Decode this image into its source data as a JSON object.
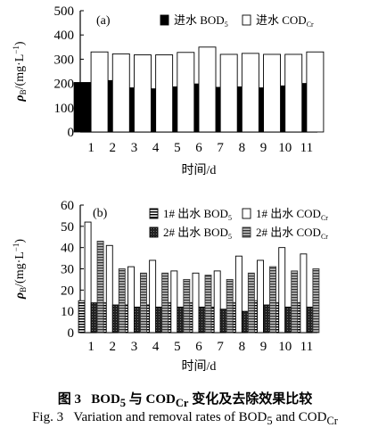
{
  "chart_data": [
    {
      "type": "bar",
      "panel_label": "(a)",
      "title": "",
      "xlabel": "时间/d",
      "ylabel": "ρB/(mg·L⁻¹)",
      "ylabel_parts": {
        "rho": "ρ",
        "sub": "B",
        "rest": "/(mg·L",
        "sup": "−1",
        "close": ")"
      },
      "ylim": [
        0,
        500
      ],
      "yticks": [
        "0",
        "100",
        "200",
        "300",
        "400",
        "500"
      ],
      "categories": [
        "1",
        "2",
        "3",
        "4",
        "5",
        "6",
        "7",
        "8",
        "9",
        "10",
        "11"
      ],
      "grid": false,
      "legend_position": "top-right",
      "series": [
        {
          "name": "进水 BOD5",
          "legend_parts": {
            "main": "进水 BOD",
            "sub": "5"
          },
          "color": "#000000",
          "pattern": "solid-black",
          "values": [
            204,
            212,
            182,
            178,
            186,
            198,
            184,
            186,
            182,
            190,
            200
          ]
        },
        {
          "name": "进水 CODCr",
          "legend_parts": {
            "main": "进水 COD",
            "sub": "Cr"
          },
          "color": "#ffffff",
          "pattern": "white-outline",
          "values": [
            330,
            322,
            318,
            318,
            328,
            350,
            320,
            324,
            320,
            320,
            330
          ]
        }
      ]
    },
    {
      "type": "bar",
      "panel_label": "(b)",
      "title": "",
      "xlabel": "时间/d",
      "ylabel": "ρB/(mg·L⁻¹)",
      "ylabel_parts": {
        "rho": "ρ",
        "sub": "B",
        "rest": "/(mg·L",
        "sup": "−1",
        "close": ")"
      },
      "ylim": [
        0,
        60
      ],
      "yticks": [
        "0",
        "10",
        "20",
        "30",
        "40",
        "50",
        "60"
      ],
      "categories": [
        "1",
        "2",
        "3",
        "4",
        "5",
        "6",
        "7",
        "8",
        "9",
        "10",
        "11"
      ],
      "grid": false,
      "legend_position": "top-right",
      "series": [
        {
          "name": "1# 出水 BOD5",
          "legend_parts": {
            "main": "1# 出水 BOD",
            "sub": "5"
          },
          "pattern": "black-white-stripes",
          "values": [
            15,
            14,
            13,
            13,
            14,
            14,
            12,
            14,
            15,
            14,
            14
          ]
        },
        {
          "name": "1# 出水 CODCr",
          "legend_parts": {
            "main": "1# 出水 COD",
            "sub": "Cr"
          },
          "pattern": "white-outline",
          "values": [
            52,
            41,
            31,
            34,
            29,
            28,
            29,
            36,
            34,
            40,
            37
          ]
        },
        {
          "name": "2# 出水 BOD5",
          "legend_parts": {
            "main": "2# 出水 BOD",
            "sub": "5"
          },
          "pattern": "dark-dotted",
          "values": [
            14,
            13,
            12,
            12,
            12,
            12,
            11,
            10,
            13,
            12,
            12
          ]
        },
        {
          "name": "2# 出水 CODCr",
          "legend_parts": {
            "main": "2# 出水 COD",
            "sub": "Cr"
          },
          "pattern": "gray-stripes",
          "values": [
            43,
            30,
            28,
            28,
            25,
            27,
            25,
            28,
            31,
            29,
            30
          ]
        }
      ]
    }
  ],
  "caption": {
    "cn": {
      "fig": "图 3",
      "a": "BOD",
      "a_sub": "5",
      "mid": " 与 COD",
      "mid_sub": "Cr",
      "rest": " 变化及去除效果比较"
    },
    "en": {
      "fig": "Fig. 3",
      "a": "Variation and removal rates of BOD",
      "a_sub": "5",
      "mid": " and COD",
      "mid_sub": "Cr"
    }
  }
}
